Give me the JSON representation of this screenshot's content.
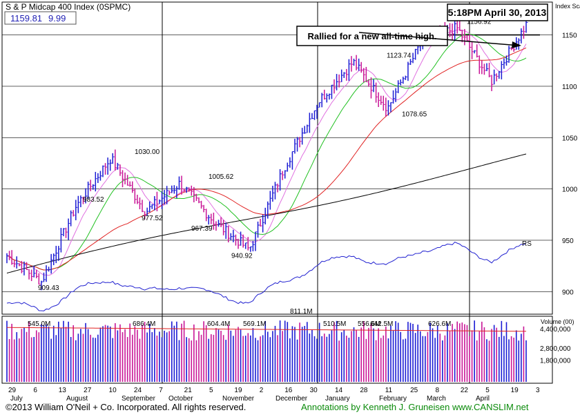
{
  "header": {
    "title": "S & P Midcap 400 Index (0SPMC)",
    "last_price": "1159.81",
    "change": "9.99",
    "timestamp": "5:18PM April 30, 2013"
  },
  "annotation": {
    "callout": "Rallied for a new all-time high."
  },
  "footer": {
    "copyright": "©2013 William O'Neil + Co. Incorporated. All rights reserved.",
    "credit": "Annotations by Kenneth J. Gruneisen www.CANSLIM.net"
  },
  "colors": {
    "up_bar": "#1a1ad4",
    "down_bar": "#c81496",
    "ma10": "#e070e0",
    "ma21": "#20c020",
    "ma50": "#e02020",
    "ma200": "#000000",
    "rs_line": "#2020d0",
    "volume_ma": "#e02020",
    "callout_text": "#000000",
    "footer_credit": "#0a8a0a"
  },
  "chart_data": {
    "type": "candlestick-ohlc",
    "price_axis": {
      "title": "Index Scale",
      "ticks": [
        1150,
        1100,
        1050,
        1000,
        950,
        900
      ],
      "range": [
        880,
        1180
      ]
    },
    "volume_axis": {
      "title": "Volume (00)",
      "ticks": [
        "4,400,000",
        "2,800,000",
        "1,800,000"
      ]
    },
    "x_axis": {
      "day_ticks": [
        "29",
        "6",
        "13",
        "27",
        "10",
        "24",
        "7",
        "21",
        "5",
        "19",
        "2",
        "16",
        "30",
        "14",
        "28",
        "11",
        "25",
        "8",
        "22",
        "5",
        "19",
        "3"
      ],
      "months": [
        "July",
        "August",
        "September",
        "October",
        "November",
        "December",
        "January",
        "February",
        "March",
        "April"
      ]
    },
    "price_annotations": [
      {
        "label": "909.43",
        "value": 909.43
      },
      {
        "label": "983.52",
        "value": 983.52
      },
      {
        "label": "1030.00",
        "value": 1030.0
      },
      {
        "label": "977.52",
        "value": 977.52
      },
      {
        "label": "1005.62",
        "value": 1005.62
      },
      {
        "label": "967.39",
        "value": 967.39
      },
      {
        "label": "940.92",
        "value": 940.92
      },
      {
        "label": "1123.74",
        "value": 1123.74
      },
      {
        "label": "1078.65",
        "value": 1078.65
      },
      {
        "label": "1156.92",
        "value": 1156.92
      }
    ],
    "volume_annotations": [
      "545.0M",
      "686.4M",
      "604.4M",
      "569.1M",
      "811.1M",
      "510.5M",
      "556.6M",
      "642.5M",
      "626.6M"
    ],
    "rs_label": "RS",
    "reference_levels": [
      1150,
      1100,
      1050,
      950
    ],
    "key_closes": [
      {
        "x": "Jun 29",
        "close": 935
      },
      {
        "x": "Jul 26",
        "close": 909.43
      },
      {
        "x": "Aug 7",
        "close": 983.52
      },
      {
        "x": "Sep 14",
        "close": 1030.0
      },
      {
        "x": "Sep 26",
        "close": 977.52
      },
      {
        "x": "Oct 5",
        "close": 1005.62
      },
      {
        "x": "Oct 23",
        "close": 967.39
      },
      {
        "x": "Nov 16",
        "close": 940.92
      },
      {
        "x": "Dec 18",
        "close": 1020
      },
      {
        "x": "Jan 25",
        "close": 1085
      },
      {
        "x": "Feb 19",
        "close": 1123.74
      },
      {
        "x": "Feb 26",
        "close": 1078.65
      },
      {
        "x": "Mar 15",
        "close": 1145
      },
      {
        "x": "Apr 2",
        "close": 1156.92
      },
      {
        "x": "Apr 18",
        "close": 1105
      },
      {
        "x": "Apr 30",
        "close": 1159.81
      }
    ]
  }
}
